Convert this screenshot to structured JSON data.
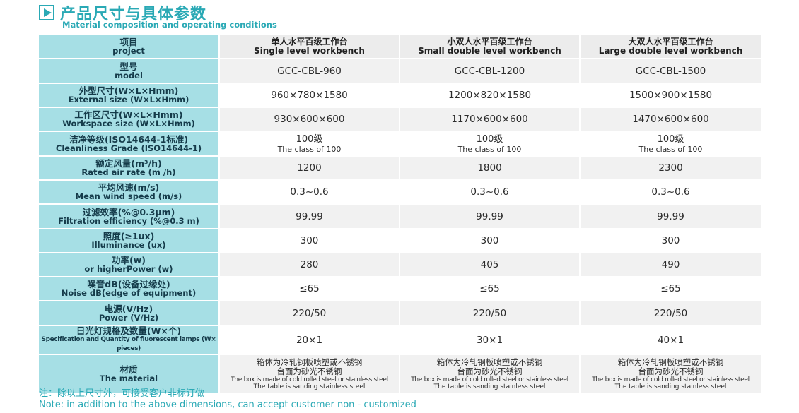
{
  "header": {
    "icon": "play-icon",
    "title": "产品尺寸与具体参数",
    "subtitle": "Material composition and operating conditions"
  },
  "table": {
    "head": {
      "label": {
        "zh": "项目",
        "en": "project"
      },
      "cols": [
        {
          "zh": "单人水平百级工作台",
          "en": "Single level workbench"
        },
        {
          "zh": "小双人水平百级工作台",
          "en": "Small double level workbench"
        },
        {
          "zh": "大双人水平百级工作台",
          "en": "Large double level workbench"
        }
      ]
    },
    "rows": [
      {
        "zh": "型号",
        "en": "model",
        "values": [
          "GCC-CBL-960",
          "GCC-CBL-1200",
          "GCC-CBL-1500"
        ]
      },
      {
        "zh": "外型尺寸(W×L×Hmm)",
        "en": "External size (W×L×Hmm)",
        "values": [
          "960×780×1580",
          "1200×820×1580",
          "1500×900×1580"
        ]
      },
      {
        "zh": "工作区尺寸(W×L×Hmm)",
        "en": "Workspace size (W×L×Hmm)",
        "values": [
          "930×600×600",
          "1170×600×600",
          "1470×600×600"
        ]
      },
      {
        "zh": "洁净等级(ISO14644-1标准)",
        "en": "Cleanliness Grade (ISO14644-1)",
        "values": [
          {
            "l1": "100级",
            "l2": "The class of 100"
          },
          {
            "l1": "100级",
            "l2": "The class of 100"
          },
          {
            "l1": "100级",
            "l2": "The class of 100"
          }
        ]
      },
      {
        "zh": "额定风量(m³/h)",
        "en": "Rated air rate (m /h)",
        "values": [
          "1200",
          "1800",
          "2300"
        ]
      },
      {
        "zh": "平均风速(m/s)",
        "en": "Mean wind speed (m/s)",
        "values": [
          "0.3~0.6",
          "0.3~0.6",
          "0.3~0.6"
        ]
      },
      {
        "zh": "过滤效率(%@0.3μm)",
        "en": "Filtration efficiency (%@0.3 m)",
        "values": [
          "99.99",
          "99.99",
          "99.99"
        ]
      },
      {
        "zh": "照度(≥1ux)",
        "en": "Illuminance (ux)",
        "values": [
          "300",
          "300",
          "300"
        ]
      },
      {
        "zh": "功率(w)",
        "en": "or higherPower (w)",
        "values": [
          "280",
          "405",
          "490"
        ]
      },
      {
        "zh": "噪音dB(设备过缘处)",
        "en": "Noise dB(edge of equipment)",
        "values": [
          "≤65",
          "≤65",
          "≤65"
        ]
      },
      {
        "zh": "电源(V/Hz)",
        "en": "Power (V/Hz)",
        "values": [
          "220/50",
          "220/50",
          "220/50"
        ]
      },
      {
        "zh": "日光灯规格及数量(W×个)",
        "en": "Specification and Quantity of fluorescent lamps (W× pieces)",
        "values": [
          "20×1",
          "30×1",
          "40×1"
        ]
      },
      {
        "zh": "材质",
        "en": "The material",
        "material": true,
        "values": [
          {
            "m1": "箱体为冷轧钢板喷塑或不锈钢",
            "m2": "台面为砂光不锈钢",
            "m3": "The box is made of cold rolled steel or stainless steel",
            "m4": "The table is sanding stainless steel"
          },
          {
            "m1": "箱体为冷轧钢板喷塑或不锈钢",
            "m2": "台面为砂光不锈钢",
            "m3": "The box is made of cold rolled steel or stainless steel",
            "m4": "The table is sanding stainless steel"
          },
          {
            "m1": "箱体为冷轧钢板喷塑或不锈钢",
            "m2": "台面为砂光不锈钢",
            "m3": "The box is made of cold rolled steel or stainless steel",
            "m4": "The table is sanding stainless steel"
          }
        ]
      }
    ]
  },
  "note": {
    "zh": "注：除以上尺寸外，可接受客户非标订做",
    "en": "Note: in addition to the above dimensions, can accept customer non - customized"
  }
}
